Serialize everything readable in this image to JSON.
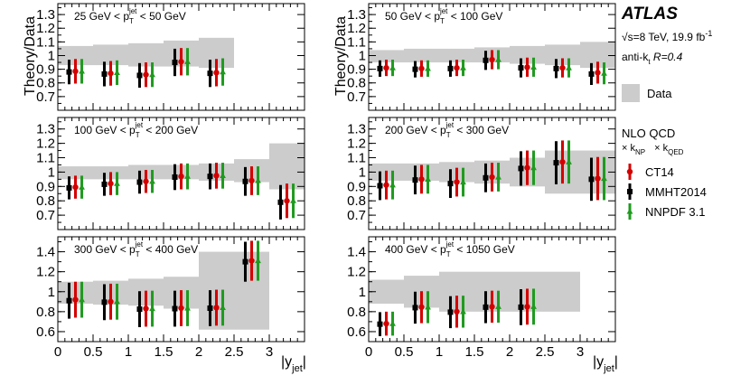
{
  "figure": {
    "atlas": "ATLAS",
    "energy_prefix": "√s=8 TeV, 19.9 fb",
    "energy_exp": "-1",
    "algo_prefix": "anti-k",
    "algo_sub": "t",
    "algo_r": " R=0.4",
    "ylabel": "Theory/Data",
    "xlabel_main": "|y",
    "xlabel_sub": "jet",
    "xlabel_end": "|"
  },
  "legend": {
    "data_label": "Data",
    "nlo_title": "NLO QCD",
    "knp_prefix": "× k",
    "knp_sub": "NP",
    "kqed_prefix": "× k",
    "kqed_sub": "QED",
    "colors": {
      "data_band": "#cccccc",
      "CT14": "#d40000",
      "MMHT2014": "#000000",
      "NNPDF 3.1": "#1f9a1f"
    }
  },
  "chart_data": [
    {
      "type": "scatter",
      "column": 0,
      "row": 0,
      "label": {
        "pre": "25 GeV < p",
        "sub": "T",
        "sup": "jet",
        "post": " < 50 GeV"
      },
      "xlim": [
        0,
        3.5
      ],
      "ylim": [
        0.6,
        1.38
      ],
      "yticks": [
        0.7,
        0.8,
        0.9,
        1.0,
        1.1,
        1.2,
        1.3
      ],
      "ytick_labels": [
        "0.7",
        "0.8",
        "0.9",
        "1",
        "1.1",
        "1.2",
        "1.3"
      ],
      "xticks": [],
      "xtick_labels": [],
      "band": [
        [
          0,
          0.5,
          0.93,
          1.07
        ],
        [
          0.5,
          1.0,
          0.93,
          1.08
        ],
        [
          1.0,
          1.5,
          0.92,
          1.09
        ],
        [
          1.5,
          2.0,
          0.92,
          1.11
        ],
        [
          2.0,
          2.5,
          0.91,
          1.13
        ]
      ],
      "series": [
        {
          "name": "CT14",
          "x": [
            0.25,
            0.75,
            1.25,
            1.75,
            2.25
          ],
          "y": [
            0.885,
            0.87,
            0.86,
            0.955,
            0.875
          ],
          "err": [
            0.09,
            0.09,
            0.09,
            0.1,
            0.1
          ]
        },
        {
          "name": "MMHT2014",
          "x": [
            0.25,
            0.75,
            1.25,
            1.75,
            2.25
          ],
          "y": [
            0.88,
            0.865,
            0.855,
            0.95,
            0.87
          ],
          "err": [
            0.09,
            0.09,
            0.09,
            0.1,
            0.1
          ]
        },
        {
          "name": "NNPDF 3.1",
          "x": [
            0.25,
            0.75,
            1.25,
            1.75,
            2.25
          ],
          "y": [
            0.885,
            0.875,
            0.86,
            0.955,
            0.88
          ],
          "err": [
            0.09,
            0.09,
            0.09,
            0.1,
            0.1
          ]
        }
      ]
    },
    {
      "type": "scatter",
      "column": 1,
      "row": 0,
      "label": {
        "pre": "50 GeV < p",
        "sub": "T",
        "sup": "jet",
        "post": " < 100 GeV"
      },
      "xlim": [
        0,
        3.5
      ],
      "ylim": [
        0.6,
        1.38
      ],
      "yticks": [
        0.7,
        0.8,
        0.9,
        1.0,
        1.1,
        1.2,
        1.3
      ],
      "ytick_labels": [
        "0.7",
        "0.8",
        "0.9",
        "1",
        "1.1",
        "1.2",
        "1.3"
      ],
      "xticks": [],
      "xtick_labels": [],
      "band": [
        [
          0,
          0.5,
          0.95,
          1.04
        ],
        [
          0.5,
          1.0,
          0.95,
          1.05
        ],
        [
          1.0,
          1.5,
          0.95,
          1.05
        ],
        [
          1.5,
          2.0,
          0.95,
          1.06
        ],
        [
          2.0,
          2.5,
          0.94,
          1.07
        ],
        [
          2.5,
          3.0,
          0.93,
          1.08
        ],
        [
          3.0,
          3.5,
          0.91,
          1.1
        ]
      ],
      "series": [
        {
          "name": "CT14",
          "x": [
            0.25,
            0.75,
            1.25,
            1.75,
            2.25,
            2.75,
            3.25
          ],
          "y": [
            0.91,
            0.905,
            0.91,
            0.97,
            0.915,
            0.91,
            0.875
          ],
          "err": [
            0.06,
            0.06,
            0.06,
            0.07,
            0.07,
            0.07,
            0.08
          ]
        },
        {
          "name": "MMHT2014",
          "x": [
            0.25,
            0.75,
            1.25,
            1.75,
            2.25,
            2.75,
            3.25
          ],
          "y": [
            0.905,
            0.9,
            0.905,
            0.965,
            0.91,
            0.905,
            0.865
          ],
          "err": [
            0.06,
            0.06,
            0.06,
            0.07,
            0.07,
            0.07,
            0.08
          ]
        },
        {
          "name": "NNPDF 3.1",
          "x": [
            0.25,
            0.75,
            1.25,
            1.75,
            2.25,
            2.75,
            3.25
          ],
          "y": [
            0.91,
            0.905,
            0.91,
            0.97,
            0.915,
            0.91,
            0.87
          ],
          "err": [
            0.06,
            0.06,
            0.06,
            0.07,
            0.07,
            0.07,
            0.08
          ]
        }
      ]
    },
    {
      "type": "scatter",
      "column": 0,
      "row": 1,
      "label": {
        "pre": "100 GeV < p",
        "sub": "T",
        "sup": "jet",
        "post": " < 200 GeV"
      },
      "xlim": [
        0,
        3.5
      ],
      "ylim": [
        0.6,
        1.38
      ],
      "yticks": [
        0.7,
        0.8,
        0.9,
        1.0,
        1.1,
        1.2,
        1.3
      ],
      "ytick_labels": [
        "0.7",
        "0.8",
        "0.9",
        "1",
        "1.1",
        "1.2",
        "1.3"
      ],
      "xticks": [],
      "xtick_labels": [],
      "band": [
        [
          0,
          0.5,
          0.95,
          1.04
        ],
        [
          0.5,
          1.0,
          0.95,
          1.04
        ],
        [
          1.0,
          1.5,
          0.95,
          1.05
        ],
        [
          1.5,
          2.0,
          0.95,
          1.05
        ],
        [
          2.0,
          2.5,
          0.94,
          1.06
        ],
        [
          2.5,
          3.0,
          0.93,
          1.09
        ],
        [
          3.0,
          3.5,
          0.88,
          1.2
        ]
      ],
      "series": [
        {
          "name": "CT14",
          "x": [
            0.25,
            0.75,
            1.25,
            1.75,
            2.25,
            2.75,
            3.25
          ],
          "y": [
            0.895,
            0.92,
            0.935,
            0.97,
            0.975,
            0.94,
            0.8
          ],
          "err": [
            0.08,
            0.08,
            0.08,
            0.09,
            0.09,
            0.1,
            0.12
          ]
        },
        {
          "name": "MMHT2014",
          "x": [
            0.25,
            0.75,
            1.25,
            1.75,
            2.25,
            2.75,
            3.25
          ],
          "y": [
            0.89,
            0.915,
            0.93,
            0.965,
            0.97,
            0.935,
            0.79
          ],
          "err": [
            0.08,
            0.08,
            0.08,
            0.09,
            0.09,
            0.1,
            0.12
          ]
        },
        {
          "name": "NNPDF 3.1",
          "x": [
            0.25,
            0.75,
            1.25,
            1.75,
            2.25,
            2.75,
            3.25
          ],
          "y": [
            0.895,
            0.92,
            0.935,
            0.97,
            0.975,
            0.94,
            0.8
          ],
          "err": [
            0.08,
            0.08,
            0.08,
            0.09,
            0.09,
            0.1,
            0.12
          ]
        }
      ]
    },
    {
      "type": "scatter",
      "column": 1,
      "row": 1,
      "label": {
        "pre": "200 GeV < p",
        "sub": "T",
        "sup": "jet",
        "post": " < 300 GeV"
      },
      "xlim": [
        0,
        3.5
      ],
      "ylim": [
        0.6,
        1.38
      ],
      "yticks": [
        0.7,
        0.8,
        0.9,
        1.0,
        1.1,
        1.2,
        1.3
      ],
      "ytick_labels": [
        "0.7",
        "0.8",
        "0.9",
        "1",
        "1.1",
        "1.2",
        "1.3"
      ],
      "xticks": [],
      "xtick_labels": [],
      "band": [
        [
          0,
          0.5,
          0.94,
          1.06
        ],
        [
          0.5,
          1.0,
          0.94,
          1.06
        ],
        [
          1.0,
          1.5,
          0.93,
          1.07
        ],
        [
          1.5,
          2.0,
          0.92,
          1.08
        ],
        [
          2.0,
          2.5,
          0.9,
          1.1
        ],
        [
          2.5,
          3.0,
          0.85,
          1.15
        ],
        [
          3.0,
          3.5,
          0.85,
          1.15
        ]
      ],
      "series": [
        {
          "name": "CT14",
          "x": [
            0.25,
            0.75,
            1.25,
            1.75,
            2.25,
            2.75,
            3.25
          ],
          "y": [
            0.91,
            0.95,
            0.93,
            0.965,
            1.03,
            1.07,
            0.955
          ],
          "err": [
            0.1,
            0.1,
            0.1,
            0.1,
            0.12,
            0.15,
            0.15
          ]
        },
        {
          "name": "MMHT2014",
          "x": [
            0.25,
            0.75,
            1.25,
            1.75,
            2.25,
            2.75,
            3.25
          ],
          "y": [
            0.905,
            0.945,
            0.92,
            0.96,
            1.025,
            1.065,
            0.95
          ],
          "err": [
            0.1,
            0.1,
            0.1,
            0.1,
            0.12,
            0.15,
            0.15
          ]
        },
        {
          "name": "NNPDF 3.1",
          "x": [
            0.25,
            0.75,
            1.25,
            1.75,
            2.25,
            2.75,
            3.25
          ],
          "y": [
            0.91,
            0.95,
            0.93,
            0.965,
            1.03,
            1.07,
            0.955
          ],
          "err": [
            0.1,
            0.1,
            0.1,
            0.1,
            0.12,
            0.15,
            0.15
          ]
        }
      ]
    },
    {
      "type": "scatter",
      "column": 0,
      "row": 2,
      "label": {
        "pre": "300 GeV < p",
        "sub": "T",
        "sup": "jet",
        "post": " < 400 GeV"
      },
      "xlim": [
        0,
        3.5
      ],
      "ylim": [
        0.5,
        1.55
      ],
      "yticks": [
        0.6,
        0.8,
        1.0,
        1.2,
        1.4
      ],
      "ytick_labels": [
        "0.6",
        "0.8",
        "1",
        "1.2",
        "1.4"
      ],
      "xticks": [
        0,
        0.5,
        1,
        1.5,
        2,
        2.5,
        3
      ],
      "xtick_labels": [
        "0",
        "0.5",
        "1",
        "1.5",
        "2",
        "2.5",
        "3"
      ],
      "band": [
        [
          0,
          0.5,
          0.88,
          1.1
        ],
        [
          0.5,
          1.0,
          0.87,
          1.11
        ],
        [
          1.0,
          1.5,
          0.86,
          1.13
        ],
        [
          1.5,
          2.0,
          0.83,
          1.15
        ],
        [
          2.0,
          2.5,
          0.62,
          1.4
        ],
        [
          2.5,
          3.0,
          0.62,
          1.4
        ]
      ],
      "series": [
        {
          "name": "CT14",
          "x": [
            0.25,
            0.75,
            1.25,
            1.75,
            2.25,
            2.75
          ],
          "y": [
            0.92,
            0.9,
            0.83,
            0.835,
            0.84,
            1.31
          ],
          "err": [
            0.18,
            0.18,
            0.18,
            0.18,
            0.18,
            0.2
          ]
        },
        {
          "name": "MMHT2014",
          "x": [
            0.25,
            0.75,
            1.25,
            1.75,
            2.25,
            2.75
          ],
          "y": [
            0.91,
            0.895,
            0.825,
            0.83,
            0.835,
            1.3
          ],
          "err": [
            0.18,
            0.18,
            0.18,
            0.18,
            0.18,
            0.2
          ]
        },
        {
          "name": "NNPDF 3.1",
          "x": [
            0.25,
            0.75,
            1.25,
            1.75,
            2.25,
            2.75
          ],
          "y": [
            0.92,
            0.9,
            0.83,
            0.835,
            0.84,
            1.31
          ],
          "err": [
            0.18,
            0.18,
            0.18,
            0.18,
            0.18,
            0.2
          ]
        }
      ]
    },
    {
      "type": "scatter",
      "column": 1,
      "row": 2,
      "label": {
        "pre": "400 GeV < p",
        "sub": "T",
        "sup": "jet",
        "post": " < 1050 GeV"
      },
      "xlim": [
        0,
        3.5
      ],
      "ylim": [
        0.5,
        1.55
      ],
      "yticks": [
        0.6,
        0.8,
        1.0,
        1.2,
        1.4
      ],
      "ytick_labels": [
        "0.6",
        "0.8",
        "1",
        "1.2",
        "1.4"
      ],
      "xticks": [
        0,
        0.5,
        1,
        1.5,
        2,
        2.5,
        3
      ],
      "xtick_labels": [
        "0",
        "0.5",
        "1",
        "1.5",
        "2",
        "2.5",
        "3"
      ],
      "band": [
        [
          0,
          0.5,
          0.88,
          1.12
        ],
        [
          0.5,
          1.0,
          0.84,
          1.16
        ],
        [
          1.0,
          1.5,
          0.8,
          1.2
        ],
        [
          1.5,
          2.0,
          0.8,
          1.2
        ],
        [
          2.0,
          2.5,
          0.8,
          1.2
        ],
        [
          2.5,
          3.0,
          0.8,
          1.2
        ]
      ],
      "series": [
        {
          "name": "CT14",
          "x": [
            0.25,
            0.75,
            1.25,
            1.75,
            2.25
          ],
          "y": [
            0.68,
            0.845,
            0.8,
            0.85,
            0.85
          ],
          "err": [
            0.12,
            0.16,
            0.16,
            0.16,
            0.18
          ]
        },
        {
          "name": "MMHT2014",
          "x": [
            0.25,
            0.75,
            1.25,
            1.75,
            2.25
          ],
          "y": [
            0.675,
            0.84,
            0.795,
            0.845,
            0.845
          ],
          "err": [
            0.12,
            0.16,
            0.16,
            0.16,
            0.18
          ]
        },
        {
          "name": "NNPDF 3.1",
          "x": [
            0.25,
            0.75,
            1.25,
            1.75,
            2.25
          ],
          "y": [
            0.68,
            0.845,
            0.8,
            0.85,
            0.85
          ],
          "err": [
            0.12,
            0.16,
            0.16,
            0.16,
            0.18
          ]
        }
      ]
    }
  ]
}
